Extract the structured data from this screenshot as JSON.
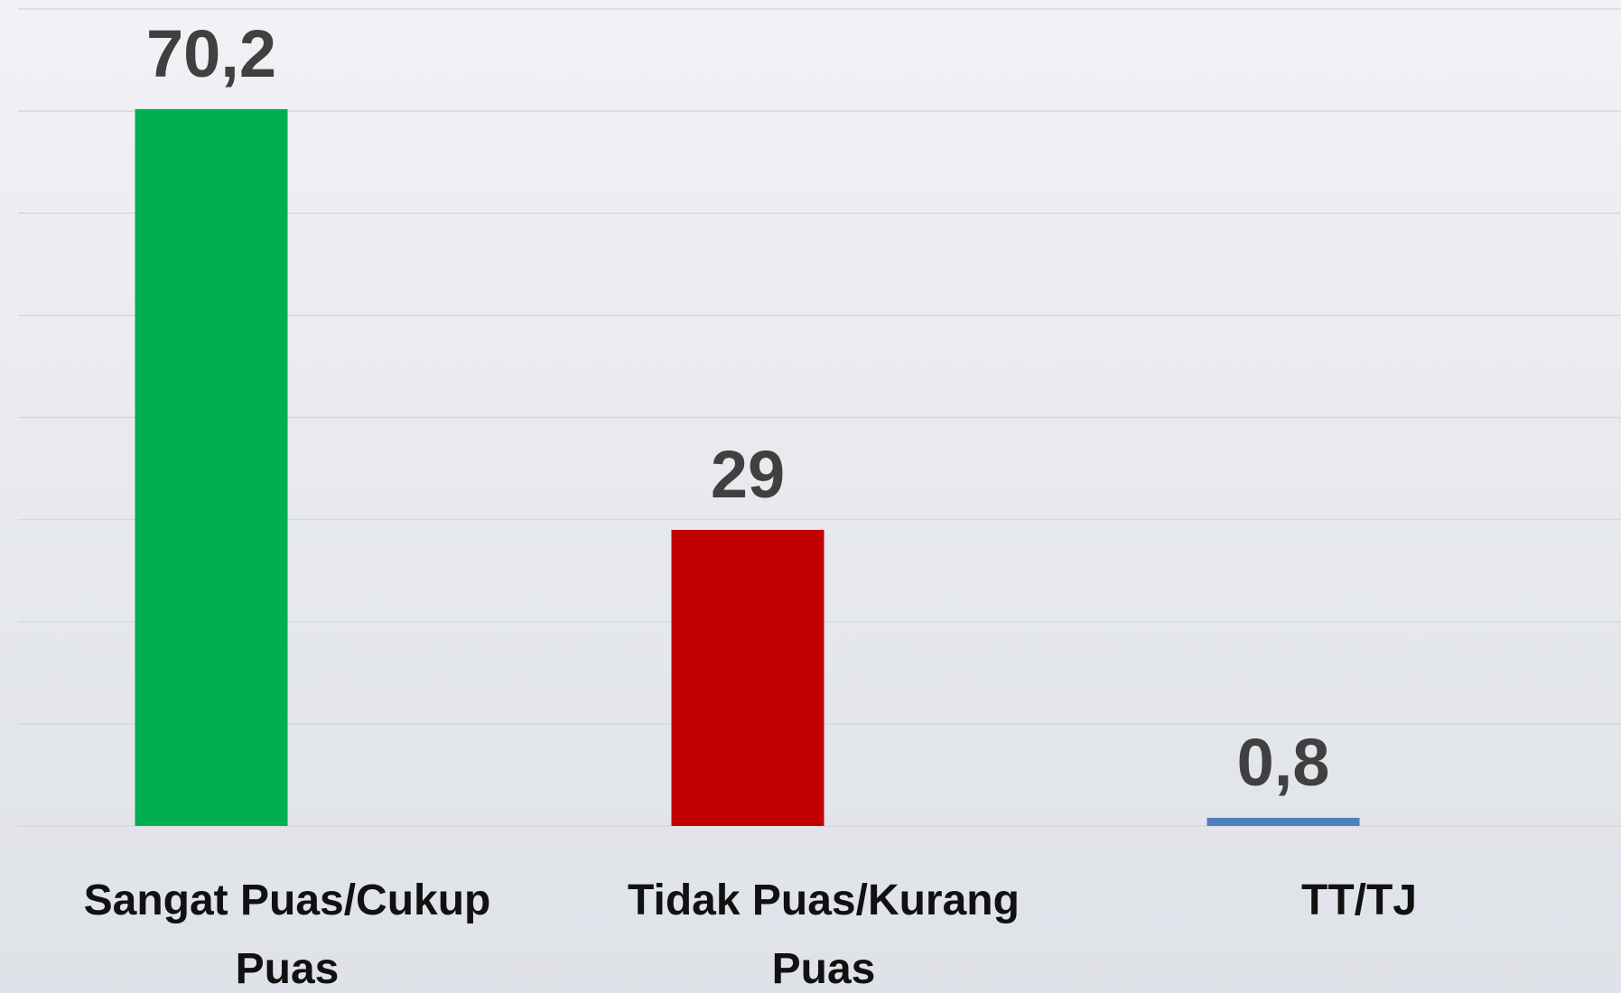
{
  "chart_data": {
    "type": "bar",
    "categories": [
      "Sangat Puas/Cukup Puas",
      "Tidak Puas/Kurang Puas",
      "TT/TJ"
    ],
    "values": [
      70.2,
      29,
      0.8
    ],
    "value_labels": [
      "70,2",
      "29",
      "0,8"
    ],
    "colors": [
      "#00b050",
      "#c00000",
      "#4f81bd"
    ],
    "ylim": [
      0,
      80
    ],
    "yticks": [
      0,
      10,
      20,
      30,
      40,
      50,
      60,
      70,
      80
    ],
    "grid": true
  }
}
